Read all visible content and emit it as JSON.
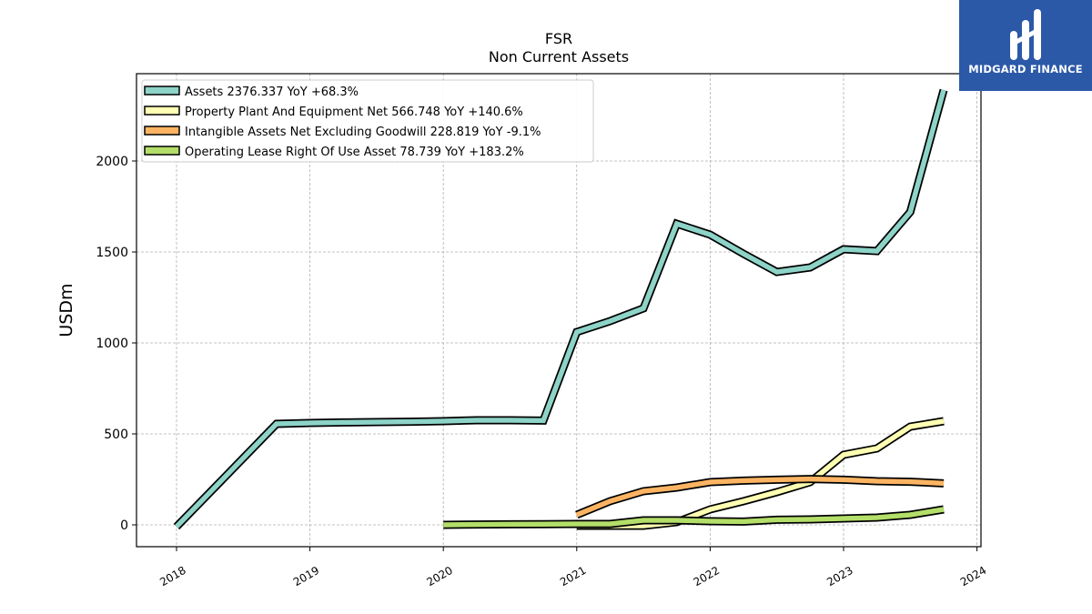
{
  "logo": {
    "text": "MIDGARD FINANCE",
    "background": "#2b59a8"
  },
  "chart_data": {
    "type": "line",
    "title": "FSR",
    "subtitle": "Non Current  Assets",
    "ylabel": "USDm",
    "xlabel": "",
    "ylim": [
      -120,
      2480
    ],
    "xlim": [
      2017.7,
      2024.03
    ],
    "yticks": [
      0,
      500,
      1000,
      1500,
      2000
    ],
    "xticks": [
      2018,
      2019,
      2020,
      2021,
      2022,
      2023,
      2024
    ],
    "grid": true,
    "legend_position": "top-left",
    "series": [
      {
        "name": "Assets  2376.337 YoY +68.3%",
        "color": "#8dd3c7",
        "x": [
          2018.0,
          2018.75,
          2019.0,
          2019.25,
          2019.5,
          2019.75,
          2020.0,
          2020.25,
          2020.5,
          2020.75,
          2021.0,
          2021.25,
          2021.5,
          2021.75,
          2022.0,
          2022.25,
          2022.5,
          2022.75,
          2023.0,
          2023.25,
          2023.5,
          2023.75
        ],
        "values": [
          -10,
          555,
          560,
          563,
          565,
          567,
          570,
          575,
          575,
          573,
          1060,
          1120,
          1190,
          1655,
          1595,
          1490,
          1390,
          1415,
          1515,
          1505,
          1720,
          2390
        ]
      },
      {
        "name": "Property Plant And Equipment Net  566.748 YoY +140.6%",
        "color": "#ffffb3",
        "x": [
          2021.0,
          2021.25,
          2021.5,
          2021.75,
          2022.0,
          2022.25,
          2022.5,
          2022.75,
          2023.0,
          2023.25,
          2023.5,
          2023.75
        ],
        "values": [
          -5,
          -5,
          -5,
          15,
          85,
          130,
          180,
          235,
          385,
          420,
          540,
          570
        ]
      },
      {
        "name": "Intangible Assets Net Excluding Goodwill  228.819 YoY -9.1%",
        "color": "#fdb462",
        "x": [
          2021.0,
          2021.25,
          2021.5,
          2021.75,
          2022.0,
          2022.25,
          2022.5,
          2022.75,
          2023.0,
          2023.25,
          2023.5,
          2023.75
        ],
        "values": [
          55,
          130,
          185,
          205,
          235,
          243,
          248,
          252,
          248,
          240,
          237,
          228
        ]
      },
      {
        "name": "Operating Lease Right Of Use Asset  78.739 YoY +183.2%",
        "color": "#b3de69",
        "x": [
          2020.0,
          2020.25,
          2020.5,
          2020.75,
          2021.0,
          2021.25,
          2021.5,
          2021.75,
          2022.0,
          2022.25,
          2022.5,
          2022.75,
          2023.0,
          2023.25,
          2023.5,
          2023.75
        ],
        "values": [
          0,
          2,
          3,
          4,
          5,
          5,
          25,
          25,
          20,
          18,
          28,
          30,
          35,
          40,
          55,
          85
        ]
      }
    ]
  }
}
